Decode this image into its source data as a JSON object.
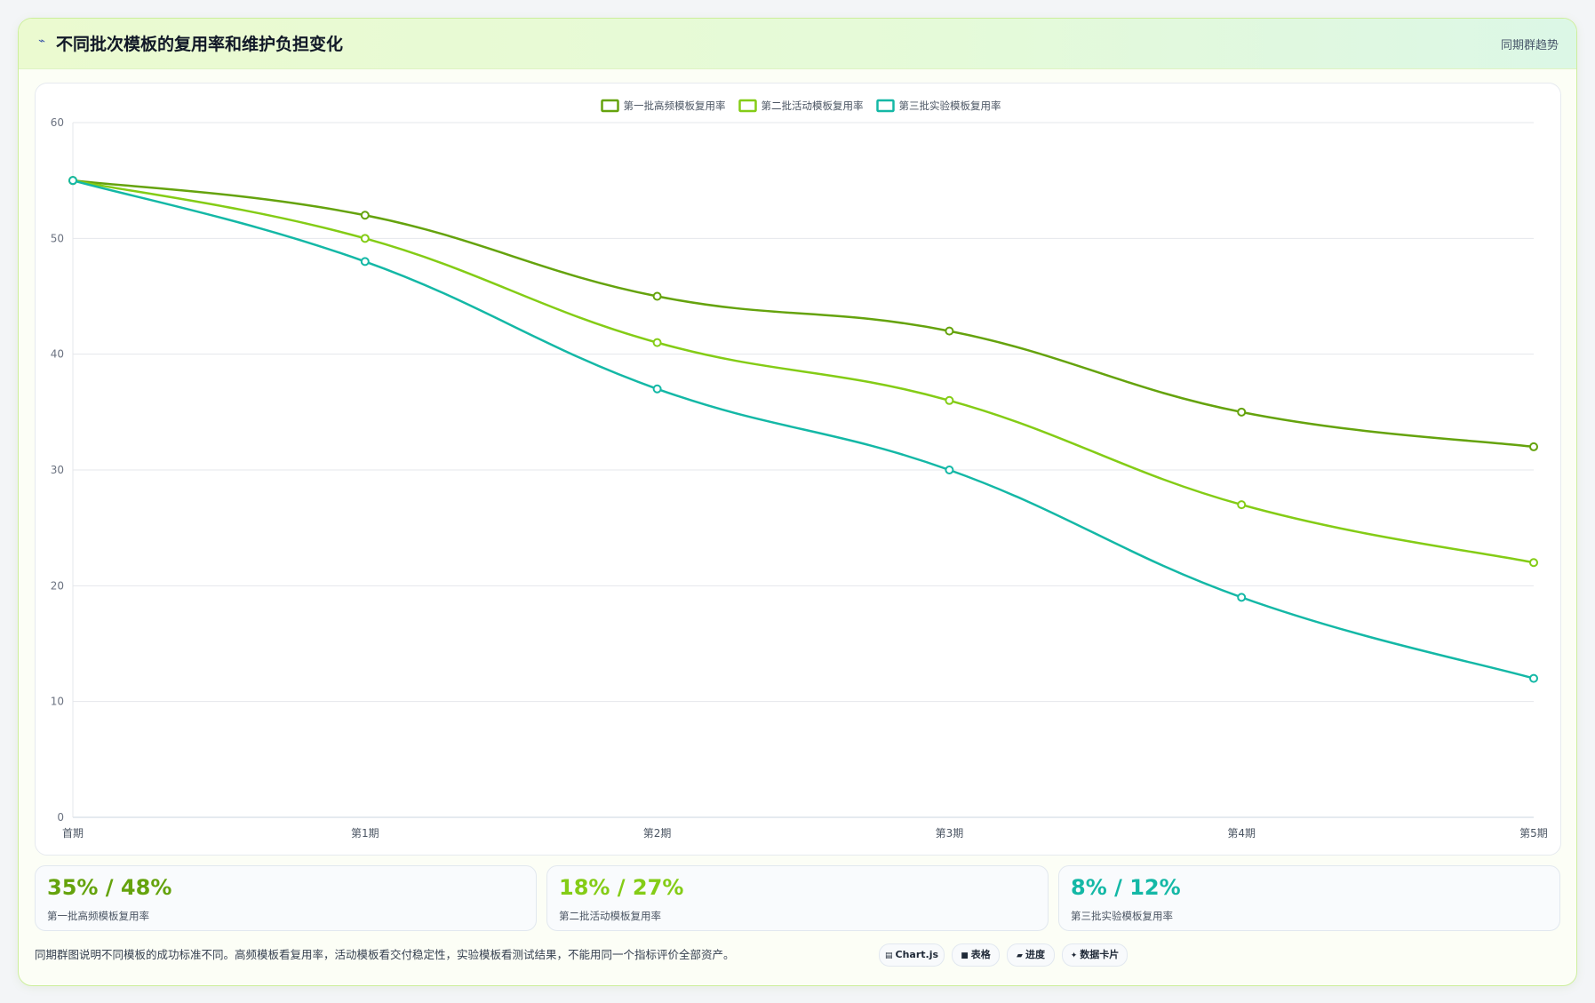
{
  "header": {
    "icon": "trend-line-icon",
    "title": "不同批次模板的复用率和维护负担变化",
    "tag": "同期群趋势"
  },
  "chart_data": {
    "type": "line",
    "categories": [
      "首期",
      "第1期",
      "第2期",
      "第3期",
      "第4期",
      "第5期"
    ],
    "ylim": [
      0,
      60
    ],
    "yticks": [
      0,
      10,
      20,
      30,
      40,
      50,
      60
    ],
    "grid": true,
    "legend": "top-center",
    "smooth": true,
    "series": [
      {
        "name": "第一批高频模板复用率",
        "color": "#65a30d",
        "values": [
          55,
          52,
          45,
          42,
          35,
          32
        ]
      },
      {
        "name": "第二批活动模板复用率",
        "color": "#84cc16",
        "values": [
          55,
          50,
          41,
          36,
          27,
          22
        ]
      },
      {
        "name": "第三批实验模板复用率",
        "color": "#14b8a6",
        "values": [
          55,
          48,
          37,
          30,
          19,
          12
        ]
      }
    ]
  },
  "stats": [
    {
      "value": "35% / 48%",
      "label": "第一批高频模板复用率",
      "color": "#65a30d"
    },
    {
      "value": "18% / 27%",
      "label": "第二批活动模板复用率",
      "color": "#84cc16"
    },
    {
      "value": "8% / 12%",
      "label": "第三批实验模板复用率",
      "color": "#14b8a6"
    }
  ],
  "footnote": "同期群图说明不同模板的成功标准不同。高频模板看复用率，活动模板看交付稳定性，实验模板看测试结果，不能用同一个指标评价全部资产。",
  "chips": [
    {
      "glyph": "▤",
      "label": "Chart.js"
    },
    {
      "glyph": "■",
      "label": "表格"
    },
    {
      "glyph": "▰",
      "label": "进度"
    },
    {
      "glyph": "✦",
      "label": "数据卡片"
    }
  ]
}
